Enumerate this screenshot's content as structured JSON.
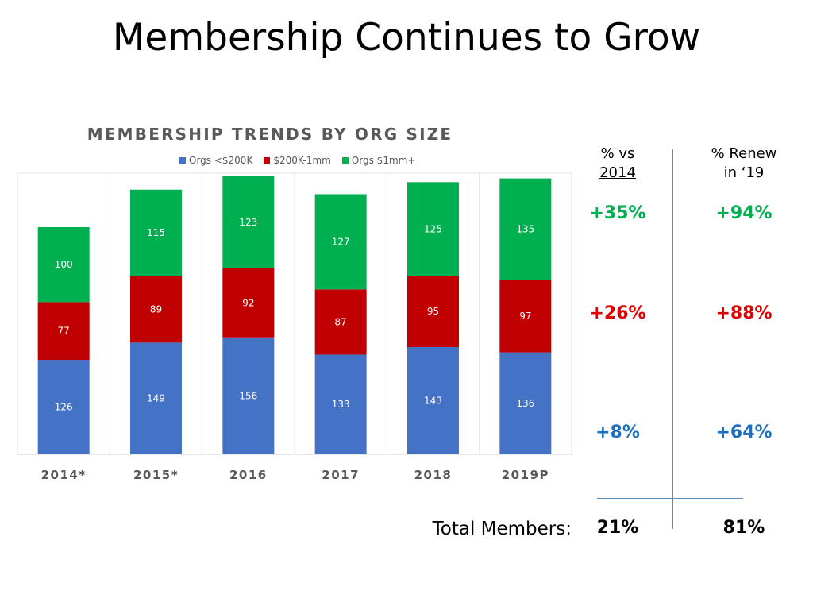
{
  "title": "Membership Continues to Grow",
  "chart_data": {
    "type": "bar",
    "stacked": true,
    "title": "MEMBERSHIP TRENDS BY ORG SIZE",
    "categories": [
      "2014*",
      "2015*",
      "2016",
      "2017",
      "2018",
      "2019P"
    ],
    "series": [
      {
        "name": "Orgs <$200K",
        "color": "#4472c4",
        "values": [
          126,
          149,
          156,
          133,
          143,
          136
        ]
      },
      {
        "name": "$200K-1mm",
        "color": "#c00000",
        "values": [
          77,
          89,
          92,
          87,
          95,
          97
        ]
      },
      {
        "name": "Orgs $1mm+",
        "color": "#00b050",
        "values": [
          100,
          115,
          123,
          127,
          125,
          135
        ]
      }
    ],
    "legend_position": "top",
    "grid": false,
    "ylim": [
      0,
      375
    ]
  },
  "summary": {
    "col1_header_line1": "% vs",
    "col1_header_line2": "2014",
    "col2_header_line1": "% Renew",
    "col2_header_line2": "in ‘19",
    "rows": [
      {
        "vs2014": "+35%",
        "renew": "+94%",
        "color": "#00b050"
      },
      {
        "vs2014": "+26%",
        "renew": "+88%",
        "color": "#e00000"
      },
      {
        "vs2014": "+8%",
        "renew": "+64%",
        "color": "#1f6fbf"
      }
    ],
    "total_label": "Total Members:",
    "total_vs2014": "21%",
    "total_renew": "81%"
  }
}
